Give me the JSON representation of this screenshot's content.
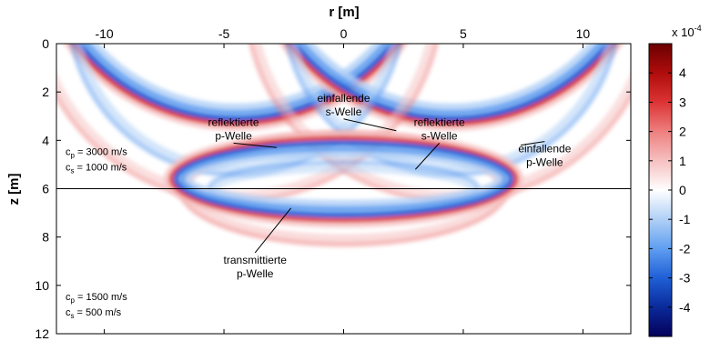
{
  "chart_data": {
    "type": "heatmap",
    "title": "",
    "xlabel": "r [m]",
    "ylabel": "z [m]",
    "xlim": [
      -12,
      12
    ],
    "ylim": [
      0,
      12
    ],
    "y_reversed": true,
    "x_ticks": [
      -10,
      -5,
      0,
      5,
      10
    ],
    "y_ticks": [
      0,
      2,
      4,
      6,
      8,
      10,
      12
    ],
    "colormap": [
      "#05005a",
      "#0a2a9a",
      "#1f5fd6",
      "#5f9ef0",
      "#b0d0f6",
      "#ffffff",
      "#f6c0c0",
      "#ee7f7f",
      "#dc3434",
      "#b00c0c",
      "#6a0000"
    ],
    "colorbar": {
      "label": "x 10",
      "exponent": "-4",
      "range": [
        -5,
        5
      ],
      "ticks": [
        4,
        3,
        2,
        1,
        0,
        -1,
        -2,
        -3,
        -4
      ]
    },
    "interface_depth": 6,
    "annotations": [
      {
        "text": "einfallende s-Welle",
        "lines": [
          "einfallende",
          "s-Welle"
        ],
        "text_at": [
          0,
          2.4
        ],
        "points_to": [
          2.2,
          3.6
        ]
      },
      {
        "text": "reflektierte p-Welle",
        "lines": [
          "reflektierte",
          "p-Welle"
        ],
        "text_at": [
          -4.6,
          3.4
        ],
        "points_to": [
          -2.8,
          4.3
        ]
      },
      {
        "text": "reflektierte s-Welle",
        "lines": [
          "reflektierte",
          "s-Welle"
        ],
        "text_at": [
          4.0,
          3.4
        ],
        "points_to": [
          3.0,
          5.2
        ]
      },
      {
        "text": "einfallende p-Welle",
        "lines": [
          "einfallende",
          "p-Welle"
        ],
        "text_at": [
          8.4,
          4.5
        ],
        "points_to": [
          7.4,
          4.2
        ]
      },
      {
        "text": "transmittierte p-Welle",
        "lines": [
          "transmittierte",
          "p-Welle"
        ],
        "text_at": [
          -3.7,
          9.1
        ],
        "points_to": [
          -2.2,
          6.8
        ]
      }
    ],
    "media": [
      {
        "layer": "upper",
        "cp_label": "c",
        "cp_sub": "p",
        "cp_value": "= 3000 m/s",
        "cs_label": "c",
        "cs_sub": "s",
        "cs_value": "= 1000 m/s"
      },
      {
        "layer": "lower",
        "cp_label": "c",
        "cp_sub": "p",
        "cp_value": "= 1500 m/s",
        "cs_label": "c",
        "cs_sub": "s",
        "cs_value": "= 500 m/s"
      }
    ],
    "wavefronts": [
      {
        "name": "incident s (left)",
        "kind": "circle",
        "center": [
          -4.5,
          -5.2
        ],
        "radius": 8.3,
        "polarity": "mixed",
        "strength": 1.0
      },
      {
        "name": "incident s (right)",
        "kind": "circle",
        "center": [
          4.5,
          -5.2
        ],
        "radius": 8.3,
        "polarity": "mixed",
        "strength": 1.0
      },
      {
        "name": "incident p (left)",
        "kind": "circle",
        "center": [
          -4.5,
          -1.5
        ],
        "radius": 7.0,
        "polarity": "negative",
        "strength": 0.35
      },
      {
        "name": "incident p (right)",
        "kind": "circle",
        "center": [
          4.5,
          -1.5
        ],
        "radius": 7.0,
        "polarity": "negative",
        "strength": 0.35
      },
      {
        "name": "outer p (left)",
        "kind": "circle",
        "center": [
          -4.5,
          -2.0
        ],
        "radius": 8.6,
        "polarity": "positive",
        "strength": 0.3
      },
      {
        "name": "outer p (right)",
        "kind": "circle",
        "center": [
          4.5,
          -2.0
        ],
        "radius": 8.6,
        "polarity": "positive",
        "strength": 0.3
      },
      {
        "name": "reflected p",
        "kind": "ellipse",
        "center": [
          0,
          6.0
        ],
        "radii": [
          6.8,
          2.3
        ],
        "polarity": "positive",
        "strength": 0.35
      },
      {
        "name": "reflected s",
        "kind": "ellipse",
        "center": [
          0,
          6.0
        ],
        "radii": [
          5.6,
          1.1
        ],
        "polarity": "negative",
        "strength": 0.3
      },
      {
        "name": "transmitted p",
        "kind": "ellipse",
        "center": [
          0,
          5.6
        ],
        "radii": [
          6.9,
          1.4
        ],
        "polarity": "mixed",
        "strength": 0.85
      }
    ]
  }
}
